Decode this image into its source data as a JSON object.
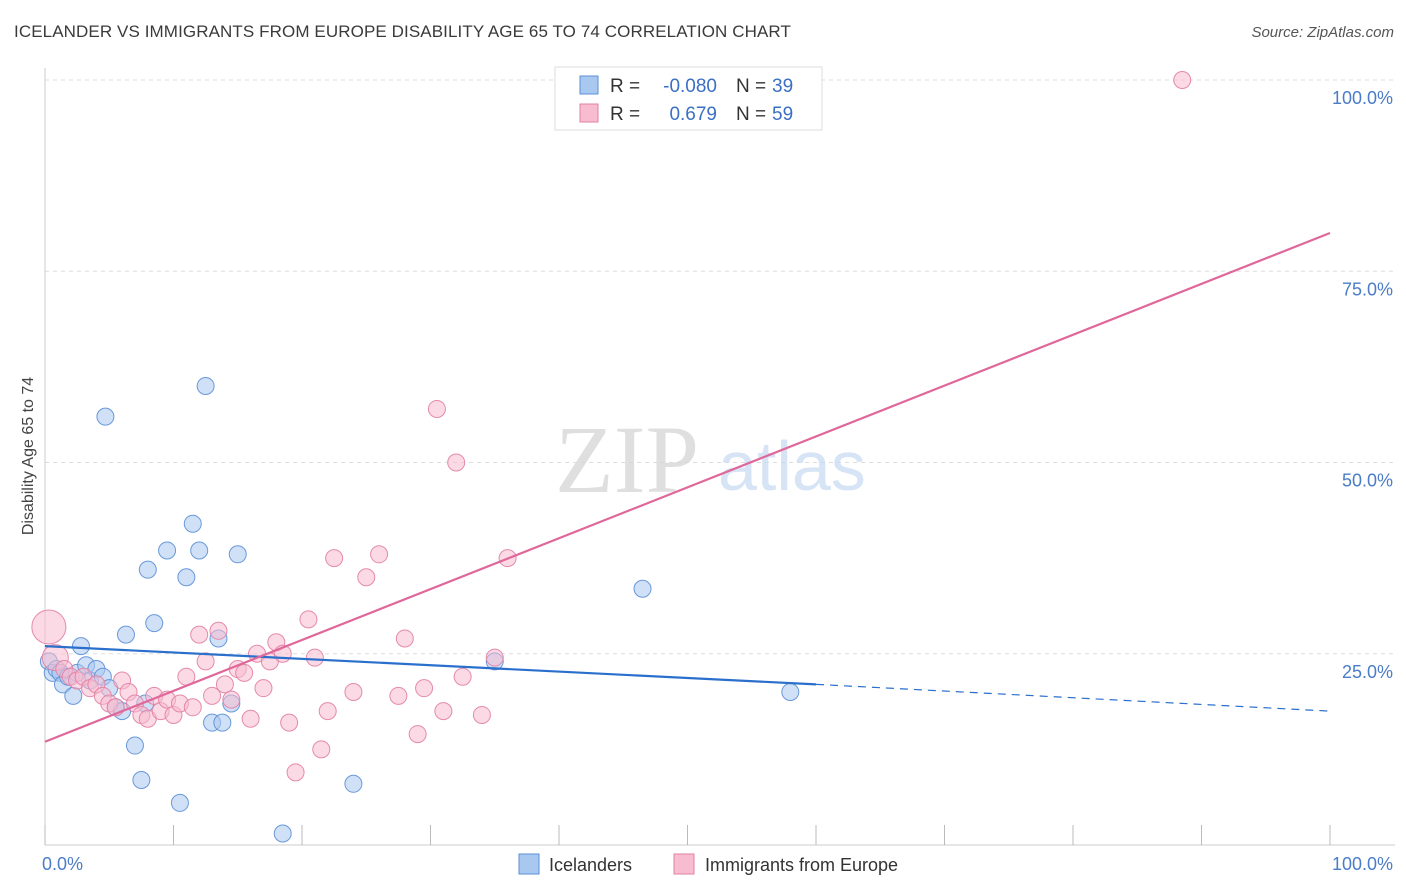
{
  "header": {
    "title": "ICELANDER VS IMMIGRANTS FROM EUROPE DISABILITY AGE 65 TO 74 CORRELATION CHART",
    "source": "Source: ZipAtlas.com"
  },
  "watermark": {
    "zip": "ZIP",
    "atlas": "atlas"
  },
  "colors": {
    "icelanders_fill": "#a9c8f0",
    "icelanders_stroke": "#5b8fd6",
    "icelanders_line": "#2a6fcc",
    "immigrants_fill": "#f7bcd0",
    "immigrants_stroke": "#e27fa3",
    "immigrants_line": "#e0679a",
    "axis_text": "#4a7cc7",
    "grid": "#dddddd"
  },
  "chart_data": {
    "type": "scatter",
    "title": "ICELANDER VS IMMIGRANTS FROM EUROPE DISABILITY AGE 65 TO 74 CORRELATION CHART",
    "xlabel": "",
    "ylabel": "Disability Age 65 to 74",
    "xlim": [
      0,
      100
    ],
    "ylim": [
      0,
      100
    ],
    "x_ticks": [
      {
        "value": 0,
        "label": "0.0%"
      },
      {
        "value": 100,
        "label": "100.0%"
      }
    ],
    "y_ticks": [
      {
        "value": 25,
        "label": "25.0%"
      },
      {
        "value": 50,
        "label": "50.0%"
      },
      {
        "value": 75,
        "label": "75.0%"
      },
      {
        "value": 100,
        "label": "100.0%"
      }
    ],
    "grid": "horizontal dashed",
    "legend_position": "top-center",
    "stats": [
      {
        "r_label": "R =",
        "r_value": "-0.080",
        "n_label": "N =",
        "n_value": "39"
      },
      {
        "r_label": "R =",
        "r_value": "0.679",
        "n_label": "N =",
        "n_value": "59"
      }
    ],
    "series": [
      {
        "name": "Icelanders",
        "trend": {
          "x": [
            0,
            60
          ],
          "y": [
            26.0,
            21.0
          ],
          "dashed_to": [
            100,
            17.5
          ]
        },
        "points": [
          [
            0.3,
            24.0
          ],
          [
            0.6,
            22.5
          ],
          [
            0.9,
            23.0
          ],
          [
            1.2,
            22.5
          ],
          [
            1.4,
            21.0
          ],
          [
            1.8,
            22.0
          ],
          [
            2.2,
            19.5
          ],
          [
            2.5,
            22.5
          ],
          [
            2.8,
            26.0
          ],
          [
            3.2,
            23.5
          ],
          [
            3.5,
            21.5
          ],
          [
            4.0,
            23.0
          ],
          [
            4.5,
            22.0
          ],
          [
            4.7,
            56.0
          ],
          [
            5.0,
            20.5
          ],
          [
            5.5,
            18.0
          ],
          [
            6.0,
            17.5
          ],
          [
            6.3,
            27.5
          ],
          [
            7.0,
            13.0
          ],
          [
            7.5,
            8.5
          ],
          [
            7.8,
            18.5
          ],
          [
            8.0,
            36.0
          ],
          [
            8.5,
            29.0
          ],
          [
            9.5,
            38.5
          ],
          [
            10.5,
            5.5
          ],
          [
            11.0,
            35.0
          ],
          [
            11.5,
            42.0
          ],
          [
            12.0,
            38.5
          ],
          [
            12.5,
            60.0
          ],
          [
            13.0,
            16.0
          ],
          [
            13.5,
            27.0
          ],
          [
            13.8,
            16.0
          ],
          [
            14.5,
            18.5
          ],
          [
            15.0,
            38.0
          ],
          [
            18.5,
            1.5
          ],
          [
            24.0,
            8.0
          ],
          [
            35.0,
            24.0
          ],
          [
            46.5,
            33.5
          ],
          [
            58.0,
            20.0
          ]
        ]
      },
      {
        "name": "Immigrants from Europe",
        "trend": {
          "x": [
            0,
            100
          ],
          "y": [
            13.5,
            80.0
          ]
        },
        "points": [
          [
            0.3,
            28.5
          ],
          [
            0.8,
            24.5
          ],
          [
            1.5,
            23.0
          ],
          [
            2.0,
            22.0
          ],
          [
            2.5,
            21.5
          ],
          [
            3.0,
            22.0
          ],
          [
            3.5,
            20.5
          ],
          [
            4.0,
            21.0
          ],
          [
            4.5,
            19.5
          ],
          [
            5.0,
            18.5
          ],
          [
            5.5,
            18.0
          ],
          [
            6.0,
            21.5
          ],
          [
            6.5,
            20.0
          ],
          [
            7.0,
            18.5
          ],
          [
            7.5,
            17.0
          ],
          [
            8.0,
            16.5
          ],
          [
            8.5,
            19.5
          ],
          [
            9.0,
            17.5
          ],
          [
            9.5,
            19.0
          ],
          [
            10.0,
            17.0
          ],
          [
            10.5,
            18.5
          ],
          [
            11.0,
            22.0
          ],
          [
            11.5,
            18.0
          ],
          [
            12.0,
            27.5
          ],
          [
            12.5,
            24.0
          ],
          [
            13.0,
            19.5
          ],
          [
            13.5,
            28.0
          ],
          [
            14.0,
            21.0
          ],
          [
            14.5,
            19.0
          ],
          [
            15.0,
            23.0
          ],
          [
            15.5,
            22.5
          ],
          [
            16.0,
            16.5
          ],
          [
            16.5,
            25.0
          ],
          [
            17.0,
            20.5
          ],
          [
            17.5,
            24.0
          ],
          [
            18.0,
            26.5
          ],
          [
            18.5,
            25.0
          ],
          [
            19.0,
            16.0
          ],
          [
            19.5,
            9.5
          ],
          [
            20.5,
            29.5
          ],
          [
            21.0,
            24.5
          ],
          [
            21.5,
            12.5
          ],
          [
            22.0,
            17.5
          ],
          [
            22.5,
            37.5
          ],
          [
            24.0,
            20.0
          ],
          [
            25.0,
            35.0
          ],
          [
            26.0,
            38.0
          ],
          [
            27.5,
            19.5
          ],
          [
            28.0,
            27.0
          ],
          [
            29.0,
            14.5
          ],
          [
            29.5,
            20.5
          ],
          [
            30.5,
            57.0
          ],
          [
            31.0,
            17.5
          ],
          [
            32.0,
            50.0
          ],
          [
            32.5,
            22.0
          ],
          [
            34.0,
            17.0
          ],
          [
            35.0,
            24.5
          ],
          [
            36.0,
            37.5
          ],
          [
            88.5,
            100.0
          ]
        ]
      }
    ]
  }
}
